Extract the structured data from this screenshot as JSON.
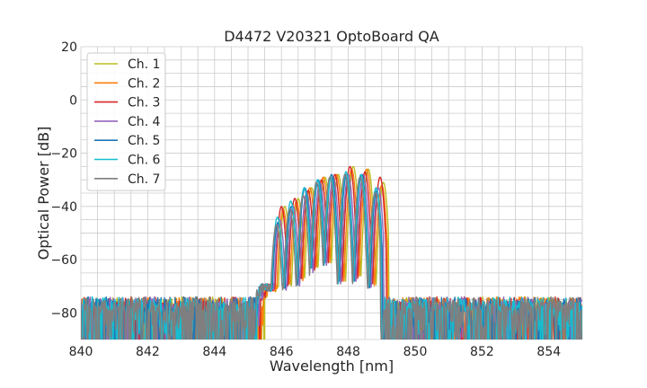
{
  "chart_data": {
    "type": "line",
    "title": "D4472 V20321 OptoBoard QA",
    "xlabel": "Wavelength [nm]",
    "ylabel": "Optical Power [dB]",
    "xlim": [
      840,
      855
    ],
    "ylim": [
      -90,
      20
    ],
    "xticks": [
      840,
      842,
      844,
      846,
      848,
      850,
      852,
      854
    ],
    "yticks": [
      20,
      0,
      -20,
      -40,
      -60,
      -80
    ],
    "minor_grid_step_x": 0.5,
    "minor_grid_step_y": 5,
    "grid": true,
    "legend_position": "top-left",
    "noise_floor_db": -80,
    "series": [
      {
        "name": "Ch. 1",
        "color": "#bcbd22",
        "shift_nm": 0.15,
        "peaks": [
          [
            845.5,
            -66
          ],
          [
            846.1,
            -40
          ],
          [
            846.5,
            -37
          ],
          [
            846.9,
            -33
          ],
          [
            847.3,
            -29
          ],
          [
            847.7,
            -28
          ],
          [
            848.15,
            -25
          ],
          [
            848.6,
            -26
          ],
          [
            849.05,
            -31
          ]
        ]
      },
      {
        "name": "Ch. 2",
        "color": "#ff7f0e",
        "shift_nm": 0.12,
        "peaks": [
          [
            845.45,
            -61
          ],
          [
            846.05,
            -41
          ],
          [
            846.45,
            -38
          ],
          [
            846.85,
            -33
          ],
          [
            847.25,
            -29
          ],
          [
            847.65,
            -28
          ],
          [
            848.1,
            -26
          ],
          [
            848.55,
            -26
          ],
          [
            849.0,
            -32
          ]
        ]
      },
      {
        "name": "Ch. 3",
        "color": "#d62728",
        "shift_nm": 0.08,
        "peaks": [
          [
            845.4,
            -64
          ],
          [
            846.0,
            -40
          ],
          [
            846.4,
            -37
          ],
          [
            846.8,
            -34
          ],
          [
            847.2,
            -30
          ],
          [
            847.6,
            -28
          ],
          [
            848.05,
            -25
          ],
          [
            848.5,
            -27
          ],
          [
            848.95,
            -29
          ]
        ]
      },
      {
        "name": "Ch. 4",
        "color": "#9467bd",
        "shift_nm": 0.0,
        "peaks": [
          [
            845.35,
            -66
          ],
          [
            845.95,
            -45
          ],
          [
            846.35,
            -40
          ],
          [
            846.75,
            -35
          ],
          [
            847.15,
            -31
          ],
          [
            847.55,
            -29
          ],
          [
            848.0,
            -28
          ],
          [
            848.45,
            -28
          ],
          [
            848.9,
            -33
          ]
        ]
      },
      {
        "name": "Ch. 5",
        "color": "#1f77b4",
        "shift_nm": -0.04,
        "peaks": [
          [
            845.3,
            -63
          ],
          [
            845.9,
            -46
          ],
          [
            846.3,
            -40
          ],
          [
            846.7,
            -33
          ],
          [
            847.1,
            -30
          ],
          [
            847.5,
            -28
          ],
          [
            847.95,
            -28
          ],
          [
            848.4,
            -28
          ],
          [
            848.85,
            -34
          ]
        ]
      },
      {
        "name": "Ch. 6",
        "color": "#17becf",
        "shift_nm": -0.08,
        "peaks": [
          [
            845.28,
            -64
          ],
          [
            845.88,
            -44
          ],
          [
            846.28,
            -38
          ],
          [
            846.68,
            -33
          ],
          [
            847.08,
            -30
          ],
          [
            847.48,
            -29
          ],
          [
            847.93,
            -27
          ],
          [
            848.38,
            -28
          ],
          [
            848.83,
            -33
          ]
        ]
      },
      {
        "name": "Ch. 7",
        "color": "#7f7f7f",
        "shift_nm": -0.1,
        "peaks": [
          [
            845.25,
            -66
          ],
          [
            845.85,
            -47
          ],
          [
            846.25,
            -41
          ],
          [
            846.65,
            -36
          ],
          [
            847.05,
            -31
          ],
          [
            847.45,
            -29
          ],
          [
            847.9,
            -28
          ],
          [
            848.35,
            -29
          ],
          [
            848.8,
            -35
          ]
        ]
      }
    ]
  }
}
